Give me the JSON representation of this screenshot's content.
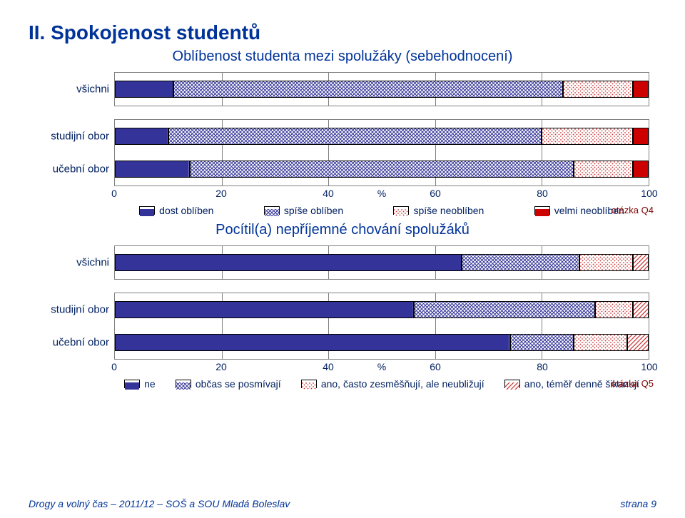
{
  "page_title": "II. Spokojenost studentů",
  "footer_left": "Drogy a volný čas – 2011/12 – SOŠ a SOU Mladá Boleslav",
  "footer_right": "strana 9",
  "charts": [
    {
      "title": "Oblíbenost studenta mezi spolužáky (sebehodnocení)",
      "question": "otázka Q4",
      "xlabel": "%",
      "xlim": [
        0,
        100
      ],
      "xtick_step": 20,
      "legend": [
        {
          "label": "dost oblíben",
          "pattern": "p-solid-blue"
        },
        {
          "label": "spíše oblíben",
          "pattern": "p-cross-blue"
        },
        {
          "label": "spíše neoblíben",
          "pattern": "p-dots-red"
        },
        {
          "label": "velmi neoblíben",
          "pattern": "p-solid-red"
        }
      ],
      "groups": [
        {
          "rows": [
            {
              "label": "všichni",
              "values": [
                11,
                73,
                13,
                3
              ]
            }
          ]
        },
        {
          "rows": [
            {
              "label": "studijní obor",
              "values": [
                10,
                70,
                17,
                3
              ]
            },
            {
              "label": "učební obor",
              "values": [
                14,
                72,
                11,
                3
              ]
            }
          ]
        }
      ]
    },
    {
      "title": "Pocítil(a) nepříjemné chování spolužáků",
      "question": "otázka Q5",
      "xlabel": "%",
      "xlim": [
        0,
        100
      ],
      "xtick_step": 20,
      "legend": [
        {
          "label": "ne",
          "pattern": "p-solid-blue"
        },
        {
          "label": "občas se posmívají",
          "pattern": "p-cross-blue"
        },
        {
          "label": "ano, často zesměšňují, ale neubližují",
          "pattern": "p-dots-red"
        },
        {
          "label": "ano, téměř denně šikanují",
          "pattern": "p-diag-red"
        }
      ],
      "groups": [
        {
          "rows": [
            {
              "label": "všichni",
              "values": [
                65,
                22,
                10,
                3
              ]
            }
          ]
        },
        {
          "rows": [
            {
              "label": "studijní obor",
              "values": [
                56,
                34,
                7,
                3
              ]
            },
            {
              "label": "učební obor",
              "values": [
                74,
                12,
                10,
                4
              ]
            }
          ]
        }
      ]
    }
  ]
}
